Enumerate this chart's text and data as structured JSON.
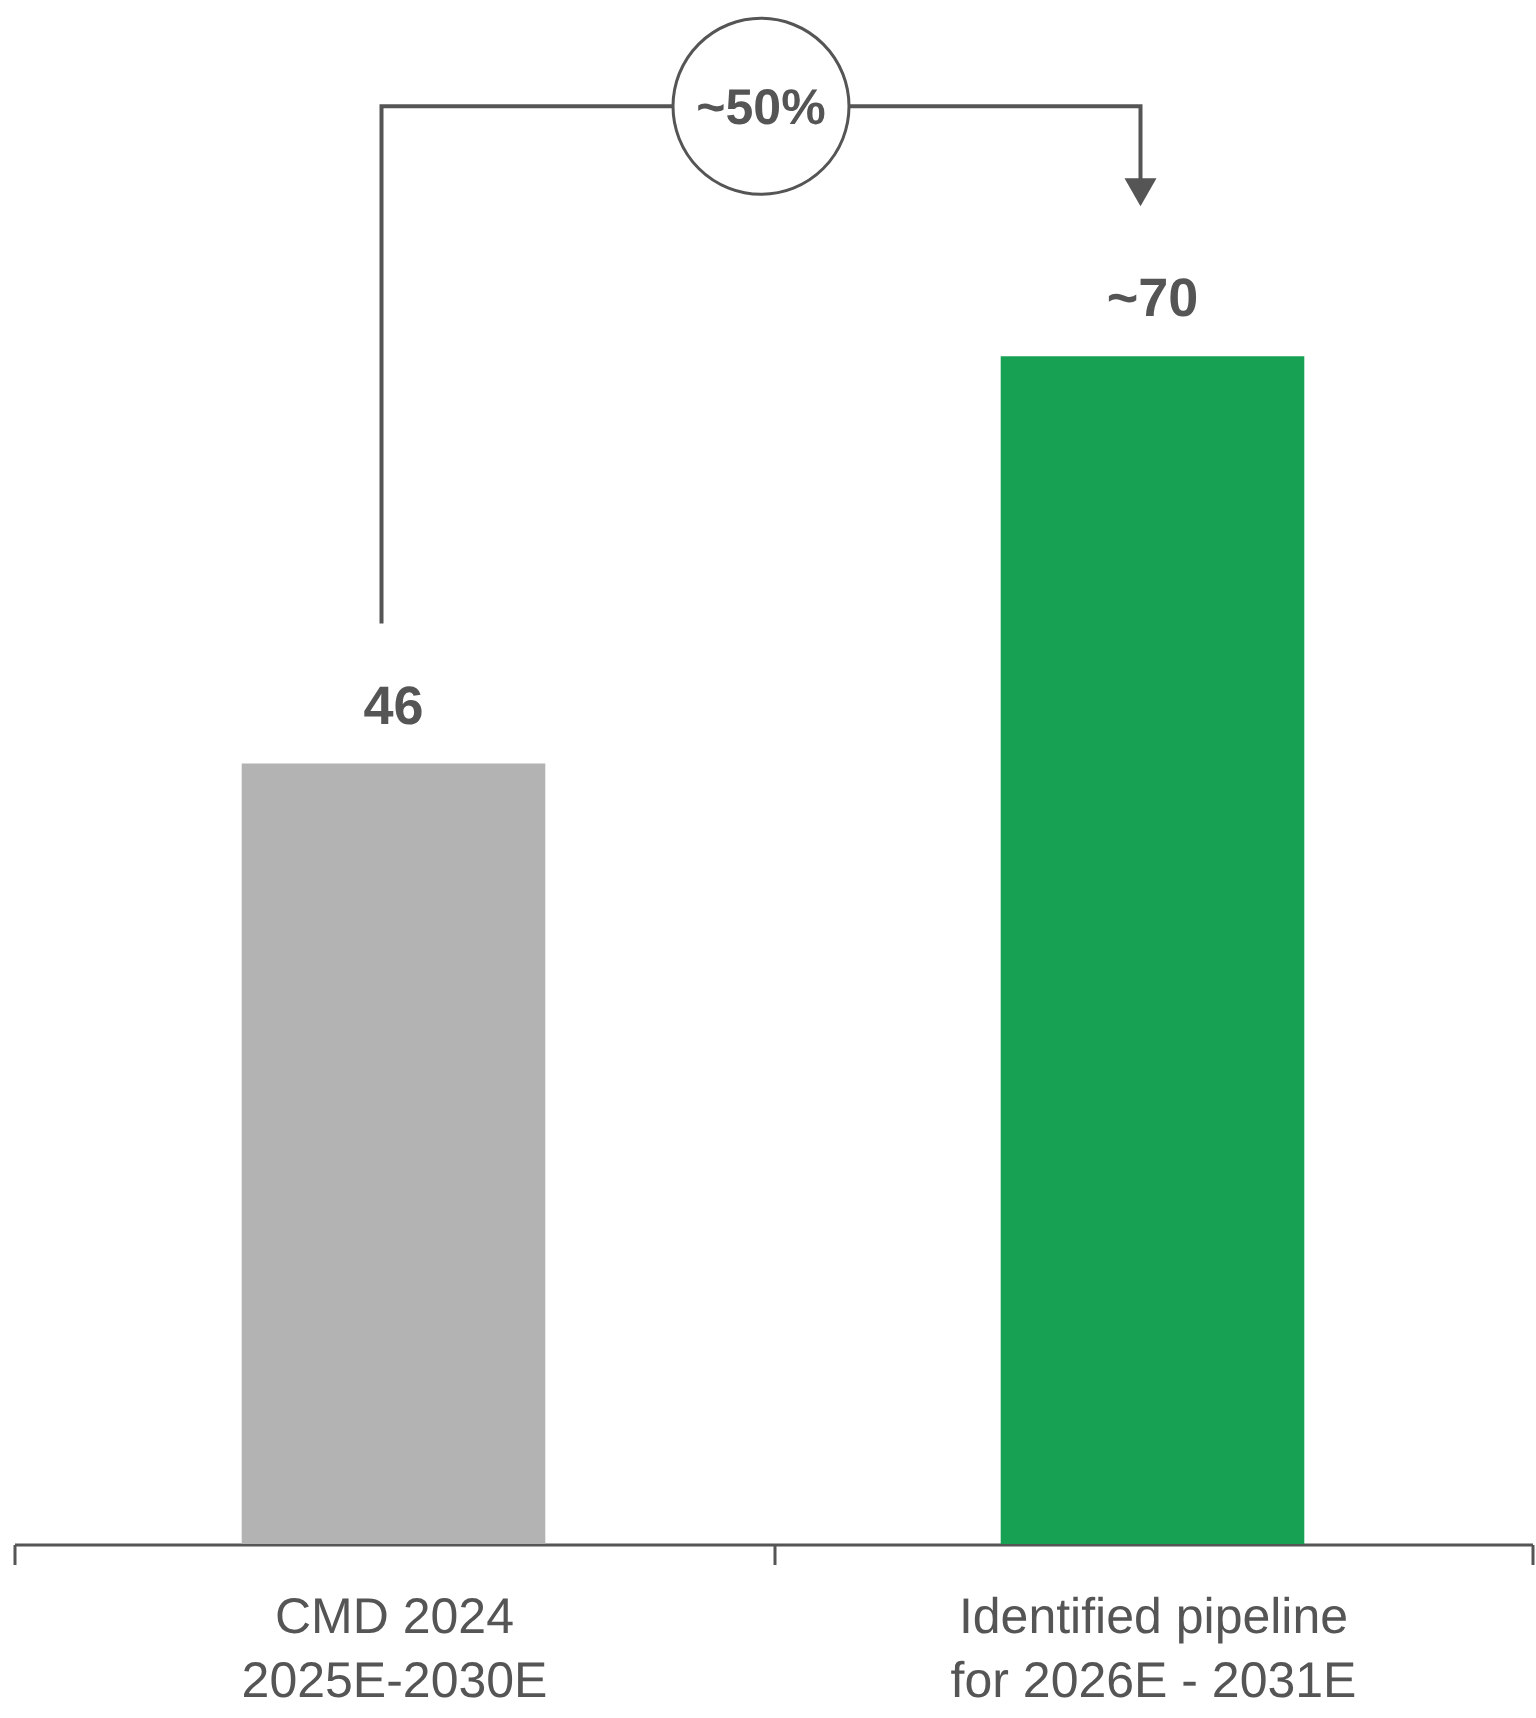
{
  "chart_data": {
    "type": "bar",
    "categories": [
      "CMD 2024\n2025E-2030E",
      "Identified pipeline\nfor 2026E - 2031E"
    ],
    "values": [
      46,
      70
    ],
    "colors": [
      "#b3b3b3",
      "#17a153"
    ],
    "value_labels": [
      "46",
      "~70"
    ],
    "annotations": [
      "~50%"
    ]
  }
}
